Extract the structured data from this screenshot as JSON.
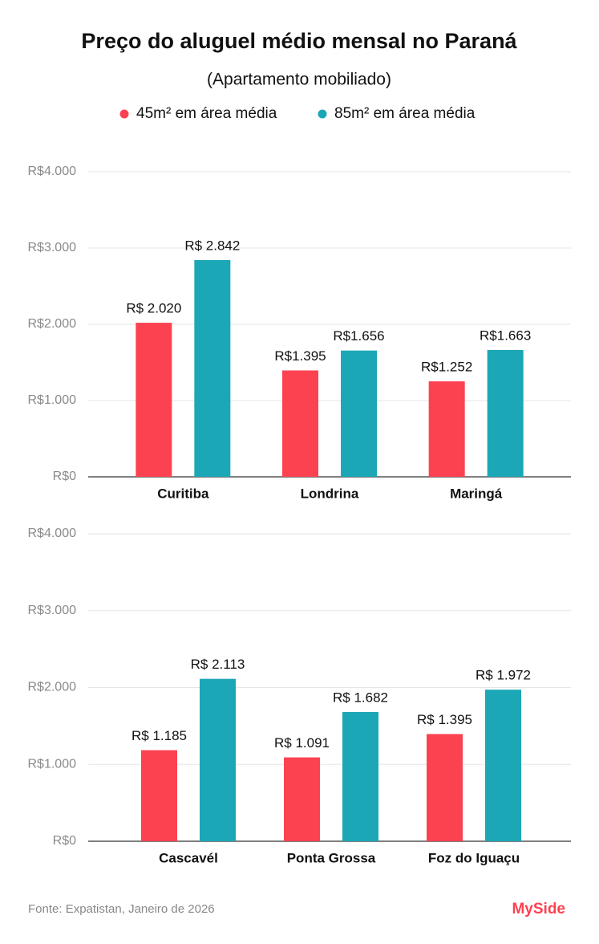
{
  "header": {
    "title": "Preço do aluguel médio mensal no Paraná",
    "subtitle": "(Apartamento mobiliado)"
  },
  "chart_data": [
    {
      "type": "bar",
      "categories": [
        "Curitiba",
        "Londrina",
        "Maringá"
      ],
      "series": [
        {
          "name": "45m² em área média",
          "color": "#fc4250",
          "values": [
            2020,
            1395,
            1252
          ],
          "value_labels": [
            "R$ 2.020",
            "R$1.395",
            "R$1.252"
          ]
        },
        {
          "name": "85m² em área média",
          "color": "#1ba7b6",
          "values": [
            2842,
            1656,
            1663
          ],
          "value_labels": [
            "R$ 2.842",
            "R$1.656",
            "R$1.663"
          ]
        }
      ],
      "ylim": [
        0,
        4000
      ],
      "yticks": [
        {
          "value": 0,
          "label": "R$0"
        },
        {
          "value": 1000,
          "label": "R$1.000"
        },
        {
          "value": 2000,
          "label": "R$2.000"
        },
        {
          "value": 3000,
          "label": "R$3.000"
        },
        {
          "value": 4000,
          "label": "R$4.000"
        }
      ],
      "grid": true
    },
    {
      "type": "bar",
      "categories": [
        "Cascavél",
        "Ponta Grossa",
        "Foz do Iguaçu"
      ],
      "series": [
        {
          "color": "#fc4250",
          "values": [
            1185,
            1091,
            1395
          ],
          "value_labels": [
            "R$ 1.185",
            "R$ 1.091",
            "R$ 1.395"
          ]
        },
        {
          "color": "#1ba7b6",
          "values": [
            2113,
            1682,
            1972
          ],
          "value_labels": [
            "R$ 2.113",
            "R$ 1.682",
            "R$ 1.972"
          ]
        }
      ],
      "ylim": [
        0,
        4000
      ],
      "yticks": [
        {
          "value": 0,
          "label": "R$0"
        },
        {
          "value": 1000,
          "label": "R$1.000"
        },
        {
          "value": 2000,
          "label": "R$2.000"
        },
        {
          "value": 3000,
          "label": "R$3.000"
        },
        {
          "value": 4000,
          "label": "R$4.000"
        }
      ],
      "grid": true
    }
  ],
  "footer": {
    "source": "Fonte: Expatistan, Janeiro de 2026",
    "logo": "MySide"
  }
}
